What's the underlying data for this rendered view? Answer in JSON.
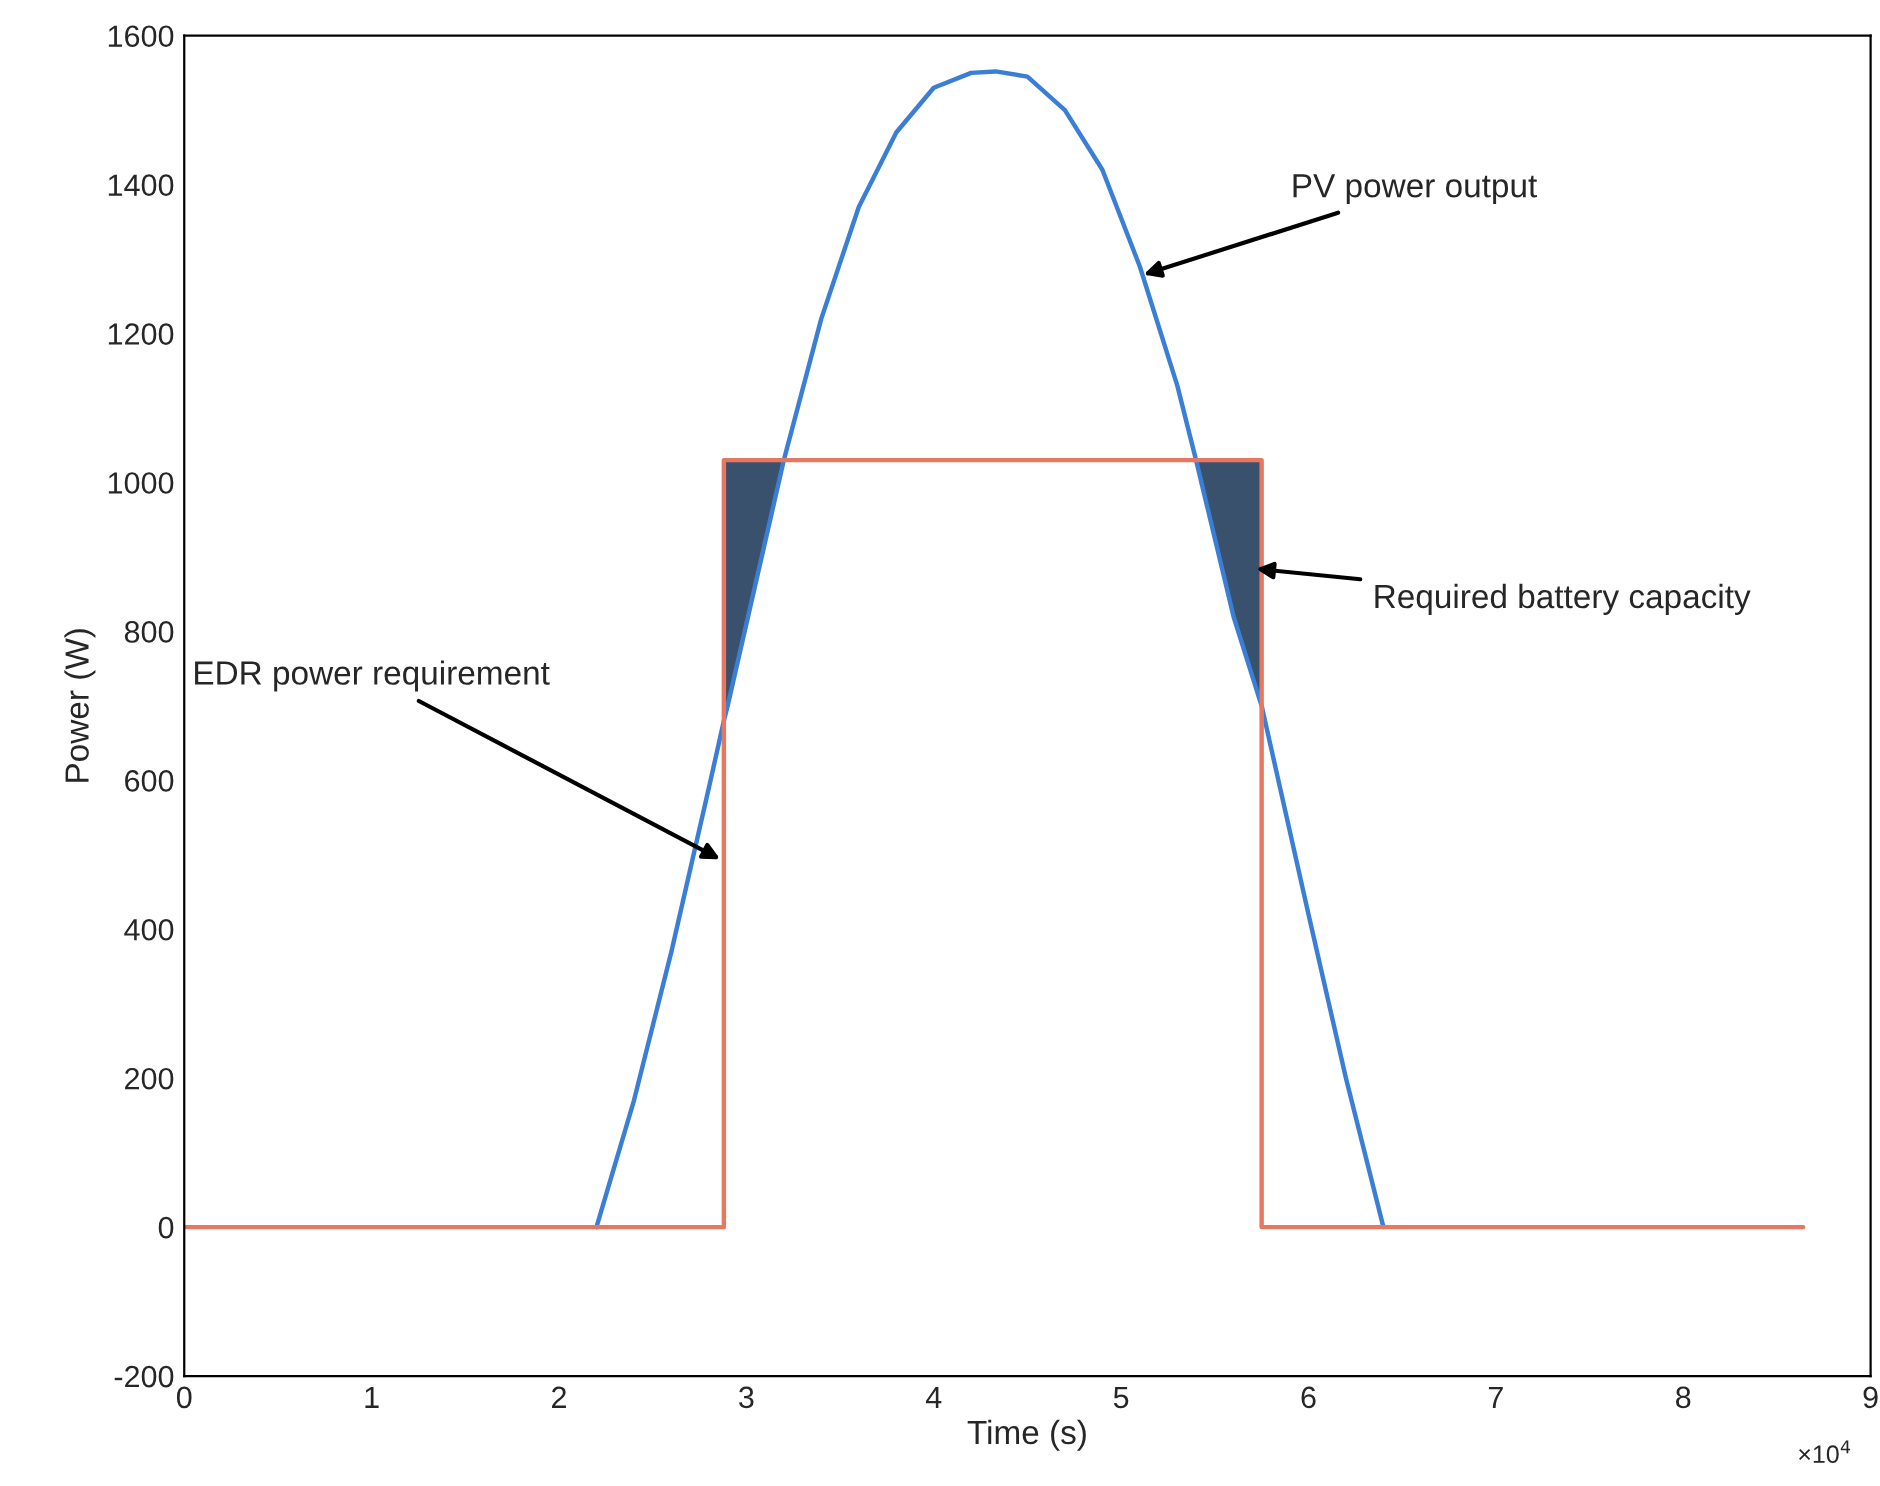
{
  "chart_data": {
    "type": "line",
    "xlabel": "Time (s)",
    "ylabel": "Power (W)",
    "series": [
      {
        "color": "#3a7fd5",
        "x": [
          2.2,
          2.4,
          2.6,
          2.8,
          2.88,
          2.88,
          2.9,
          3.0,
          3.1,
          3.2,
          3.4,
          3.6,
          3.8,
          4.0,
          4.2,
          4.33,
          4.5,
          4.7,
          4.9,
          5.1,
          5.3,
          5.4,
          5.5,
          5.6,
          5.7,
          5.75,
          5.75,
          6.0,
          6.2,
          6.4
        ],
        "values": [
          0,
          170,
          370,
          590,
          680,
          680,
          700,
          810,
          920,
          1030,
          1220,
          1370,
          1470,
          1530,
          1550,
          1552,
          1545,
          1500,
          1420,
          1290,
          1130,
          1030,
          925,
          820,
          740,
          700,
          700,
          420,
          200,
          0
        ],
        "lower": [
          0,
          170,
          370,
          590,
          680,
          680,
          700,
          810,
          920,
          1030,
          1220,
          1370,
          1470,
          1530,
          1550,
          1552,
          1545,
          1500,
          1420,
          1290,
          1130,
          1030,
          925,
          820,
          740,
          700,
          700,
          420,
          200,
          0
        ],
        "upper": [
          0,
          170,
          370,
          590,
          680,
          1030,
          1030,
          1030,
          1030,
          1030,
          1220,
          1370,
          1470,
          1530,
          1550,
          1552,
          1545,
          1500,
          1420,
          1290,
          1130,
          1030,
          1030,
          1030,
          1030,
          1030,
          700,
          420,
          200,
          0
        ]
      },
      {
        "color": "#e8775f",
        "x": [
          0,
          2.88,
          2.88,
          5.75,
          5.75,
          8.64
        ],
        "values": [
          0,
          0,
          1030,
          1030,
          0,
          0
        ]
      }
    ],
    "xlim": [
      0,
      9
    ],
    "xticks": [
      0,
      1,
      2,
      3,
      4,
      5,
      6,
      7,
      8,
      9
    ],
    "ylim": [
      -200,
      1600
    ],
    "yticks": [
      -200,
      0,
      200,
      400,
      600,
      800,
      1000,
      1200,
      1400,
      1600
    ],
    "grid": false,
    "annotations": [
      {
        "text": "PV power output",
        "x": 5.12,
        "y": 1279
      },
      {
        "text": "Required battery capacity",
        "x": 5.72,
        "y": 884
      },
      {
        "text": "EDR power requirement",
        "x": 2.86,
        "y": 494
      },
      "×10$^{4}$"
    ]
  }
}
